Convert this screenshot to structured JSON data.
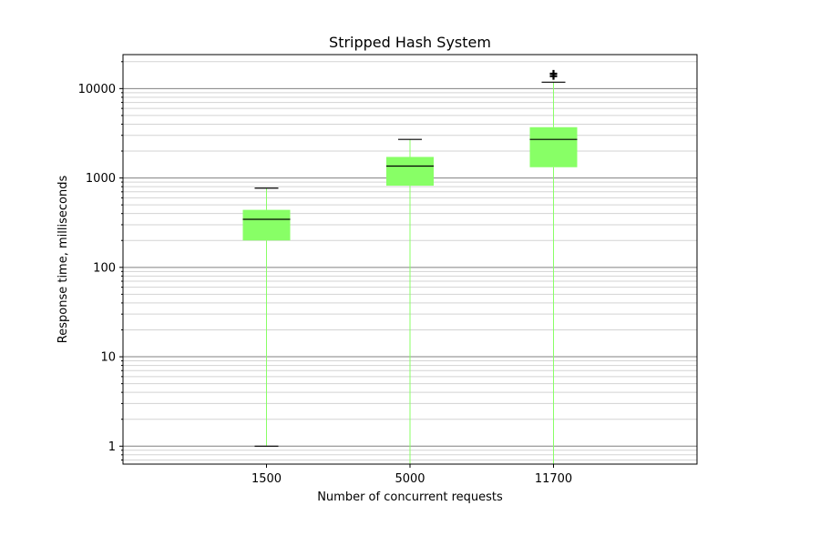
{
  "chart_data": {
    "type": "box",
    "title": "Stripped Hash System",
    "xlabel": "Number of concurrent requests",
    "ylabel": "Response time, milliseconds",
    "yscale": "log",
    "ylim": [
      0.63,
      24000
    ],
    "y_ticks": [
      1,
      10,
      100,
      1000,
      10000
    ],
    "y_tick_labels": [
      "1",
      "10",
      "100",
      "1000",
      "10000"
    ],
    "grid": "major and minor horizontal",
    "categories": [
      "1500",
      "5000",
      "11700"
    ],
    "boxes": [
      {
        "category": "1500",
        "whisker_low": 1,
        "q1": 200,
        "median": 345,
        "q3": 440,
        "whisker_high": 770,
        "outliers": []
      },
      {
        "category": "5000",
        "whisker_low": 0.63,
        "q1": 820,
        "median": 1360,
        "q3": 1720,
        "whisker_high": 2700,
        "outliers": []
      },
      {
        "category": "11700",
        "whisker_low": 0.63,
        "q1": 1320,
        "median": 2700,
        "q3": 3700,
        "whisker_high": 11800,
        "outliers": [
          13800,
          14700
        ]
      }
    ],
    "colors": {
      "box": "#88ff66",
      "whisker": "#88ff66",
      "median": "#000000",
      "cap": "#000000",
      "outlier": "#000000"
    }
  }
}
